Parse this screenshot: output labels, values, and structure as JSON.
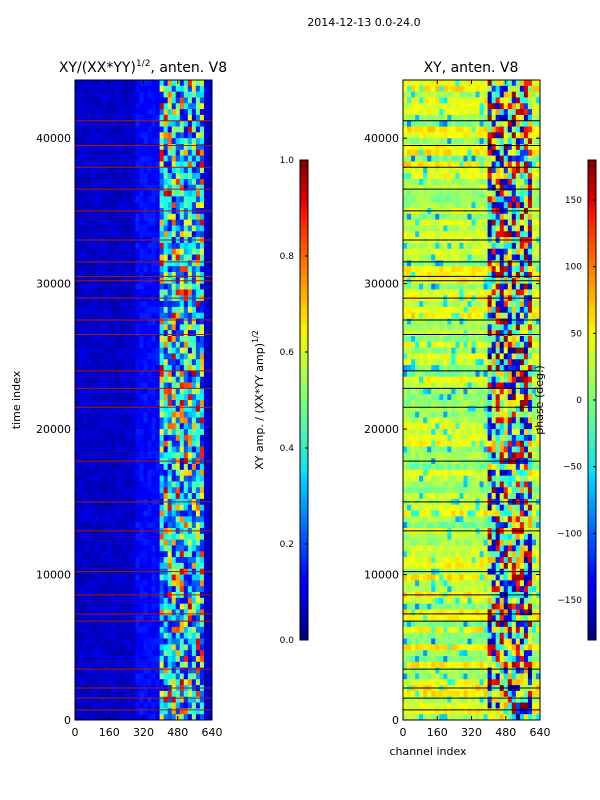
{
  "figure": {
    "suptitle": "2014-12-13 0.0-24.0"
  },
  "chart_data": [
    {
      "type": "heatmap",
      "title": "XY/(XX*YY)",
      "title_exponent": "1/2",
      "title_suffix": ", anten. V8",
      "xlabel": "",
      "ylabel": "time index",
      "xlim": [
        0,
        640
      ],
      "ylim": [
        0,
        44000
      ],
      "xticks": [
        0,
        160,
        320,
        480,
        640
      ],
      "yticks": [
        0,
        10000,
        20000,
        30000,
        40000
      ],
      "colorscale": "jet",
      "background_value": 0.07,
      "active_channel_band": [
        390,
        600
      ],
      "flagged_rows": [
        700,
        1500,
        2200,
        3500,
        6800,
        7300,
        8600,
        10200,
        13000,
        15000,
        17800,
        21500,
        22800,
        24000,
        26500,
        27500,
        29000,
        30200,
        30500,
        31500,
        33000,
        35000,
        36500,
        38000,
        39500,
        41200
      ],
      "colorbar": {
        "label": "XY amp. / (XX*YY amp)",
        "label_exponent": "1/2",
        "range": [
          0.0,
          1.0
        ],
        "ticks": [
          "0.0",
          "0.2",
          "0.4",
          "0.6",
          "0.8",
          "1.0"
        ]
      }
    },
    {
      "type": "heatmap",
      "title": "XY, anten. V8",
      "xlabel": "channel index",
      "ylabel": "",
      "xlim": [
        0,
        640
      ],
      "ylim": [
        0,
        44000
      ],
      "xticks": [
        0,
        160,
        320,
        480,
        640
      ],
      "yticks": [
        0,
        10000,
        20000,
        30000,
        40000
      ],
      "colorscale": "jet",
      "background_value": 25,
      "active_channel_band": [
        390,
        600
      ],
      "flagged_rows": [
        700,
        1500,
        2200,
        3500,
        6800,
        7300,
        8600,
        10200,
        13000,
        15000,
        17800,
        21500,
        22800,
        24000,
        26500,
        27500,
        29000,
        30200,
        30500,
        31500,
        33000,
        35000,
        36500,
        38000,
        39500,
        41200
      ],
      "colorbar": {
        "label": "phase (deg.)",
        "range": [
          -180,
          180
        ],
        "ticks": [
          "−150",
          "−100",
          "−50",
          "0",
          "50",
          "100",
          "150"
        ],
        "tick_values": [
          -150,
          -100,
          -50,
          0,
          50,
          100,
          150
        ]
      }
    }
  ]
}
